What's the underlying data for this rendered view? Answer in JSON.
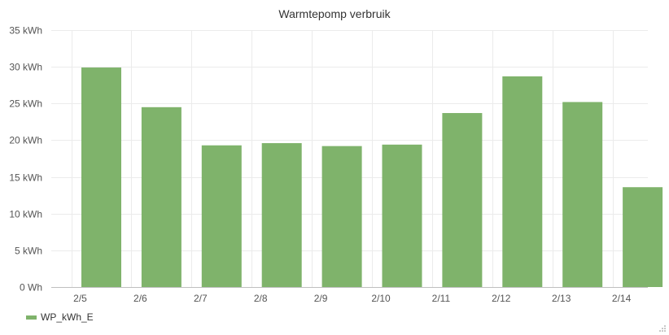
{
  "chart_data": {
    "type": "bar",
    "title": "Warmtepomp verbruik",
    "xlabel": "",
    "ylabel": "",
    "categories": [
      "2/5",
      "2/6",
      "2/7",
      "2/8",
      "2/9",
      "2/10",
      "2/11",
      "2/12",
      "2/13",
      "2/14"
    ],
    "series": [
      {
        "name": "WP_kWh_E",
        "values": [
          29.9,
          24.5,
          19.3,
          19.6,
          19.2,
          19.4,
          23.7,
          28.7,
          25.2,
          13.6
        ]
      }
    ],
    "ylim": [
      0,
      35
    ],
    "y_ticks": [
      {
        "value": 0,
        "label": "0 Wh"
      },
      {
        "value": 5,
        "label": "5 kWh"
      },
      {
        "value": 10,
        "label": "10 kWh"
      },
      {
        "value": 15,
        "label": "15 kWh"
      },
      {
        "value": 20,
        "label": "20 kWh"
      },
      {
        "value": 25,
        "label": "25 kWh"
      },
      {
        "value": 30,
        "label": "30 kWh"
      },
      {
        "value": 35,
        "label": "35 kWh"
      }
    ],
    "grid": true,
    "legend_position": "bottom-left",
    "bar_color": "#7fb36b",
    "grid_color": "#ebebeb",
    "axis_color": "#bfbfbf"
  }
}
